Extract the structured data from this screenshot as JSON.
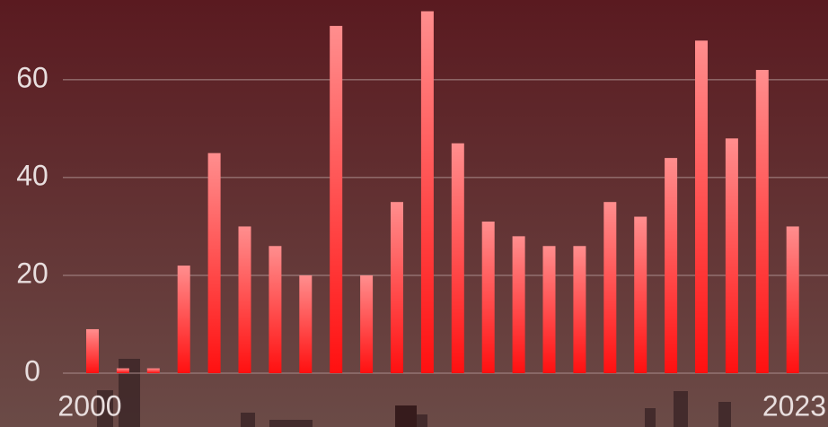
{
  "chart_data": {
    "type": "bar",
    "categories": [
      "2000",
      null,
      null,
      null,
      null,
      null,
      null,
      null,
      null,
      null,
      null,
      null,
      null,
      null,
      null,
      null,
      null,
      null,
      null,
      null,
      null,
      null,
      null,
      "2023"
    ],
    "values": [
      9,
      1,
      1,
      22,
      45,
      30,
      26,
      20,
      71,
      20,
      35,
      74,
      47,
      31,
      28,
      26,
      26,
      35,
      32,
      44,
      68,
      48,
      62,
      30
    ],
    "color": "#ff1a1a",
    "ylim": [
      -11,
      76.3
    ],
    "yticks": [
      0,
      20,
      40,
      60
    ],
    "grid": true
  }
}
